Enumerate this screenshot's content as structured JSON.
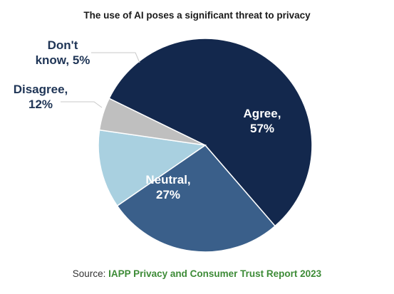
{
  "chart_data": {
    "type": "pie",
    "title": "The use of AI poses a significant threat to privacy",
    "slices": [
      {
        "label": "Agree,",
        "value_label": "57%",
        "value": 57,
        "color": "#13284d",
        "label_color": "#ffffff"
      },
      {
        "label": "Neutral,",
        "value_label": "27%",
        "value": 27,
        "color": "#3a5f8a",
        "label_color": "#ffffff"
      },
      {
        "label": "Disagree,",
        "value_label": "12%",
        "value": 12,
        "color": "#a9d0e0",
        "label_color": "#1f3556"
      },
      {
        "label": "Don't",
        "value_label": "know, 5%",
        "value": 5,
        "color": "#bfbfbf",
        "label_color": "#1f3556"
      }
    ]
  },
  "source": {
    "prefix": "Source: ",
    "name": "IAPP Privacy and Consumer Trust Report 2023"
  }
}
